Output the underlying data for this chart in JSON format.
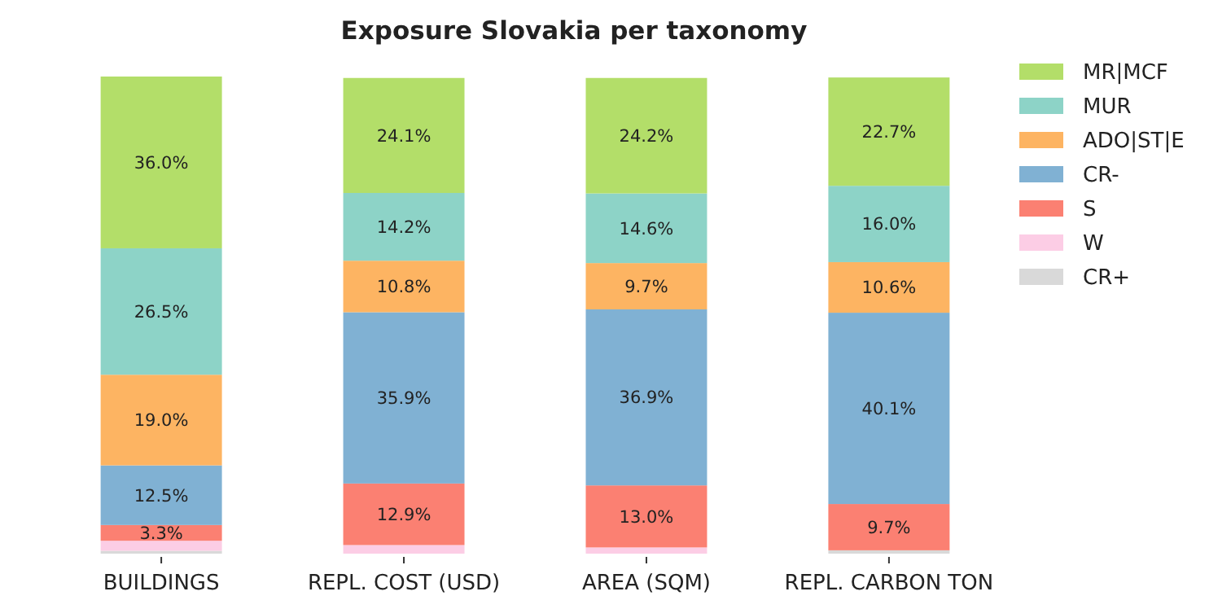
{
  "chart_data": {
    "type": "bar",
    "title": "Exposure Slovakia per taxonomy",
    "stacked": true,
    "legend": "top right",
    "categories": [
      "BUILDINGS",
      "REPL. COST (USD)",
      "AREA (SQM)",
      "REPL. CARBON TON"
    ],
    "series": [
      {
        "name": "CR+",
        "color": "#d9d9d9",
        "values": [
          0.6,
          null,
          null,
          0.7
        ],
        "value_labels": [
          null,
          null,
          null,
          null
        ]
      },
      {
        "name": "W",
        "color": "#fccde5",
        "values": [
          2.1,
          1.8,
          1.3,
          null
        ],
        "value_labels": [
          null,
          null,
          null,
          null
        ]
      },
      {
        "name": "S",
        "color": "#fb8072",
        "values": [
          3.3,
          12.9,
          13.0,
          9.7
        ],
        "value_labels": [
          "3.3%",
          "12.9%",
          "13.0%",
          "9.7%"
        ]
      },
      {
        "name": "CR-",
        "color": "#80b1d3",
        "values": [
          12.5,
          35.9,
          36.9,
          40.1
        ],
        "value_labels": [
          "12.5%",
          "35.9%",
          "36.9%",
          "40.1%"
        ]
      },
      {
        "name": "ADO|ST|E",
        "color": "#fdb462",
        "values": [
          19.0,
          10.8,
          9.7,
          10.6
        ],
        "value_labels": [
          "19.0%",
          "10.8%",
          "9.7%",
          "10.6%"
        ]
      },
      {
        "name": "MUR",
        "color": "#8dd3c7",
        "values": [
          26.5,
          14.2,
          14.6,
          16.0
        ],
        "value_labels": [
          "26.5%",
          "14.2%",
          "14.6%",
          "16.0%"
        ]
      },
      {
        "name": "MR|MCF",
        "color": "#b3de69",
        "values": [
          36.0,
          24.1,
          24.2,
          22.7
        ],
        "value_labels": [
          "36.0%",
          "24.1%",
          "24.2%",
          "22.7%"
        ]
      }
    ]
  }
}
